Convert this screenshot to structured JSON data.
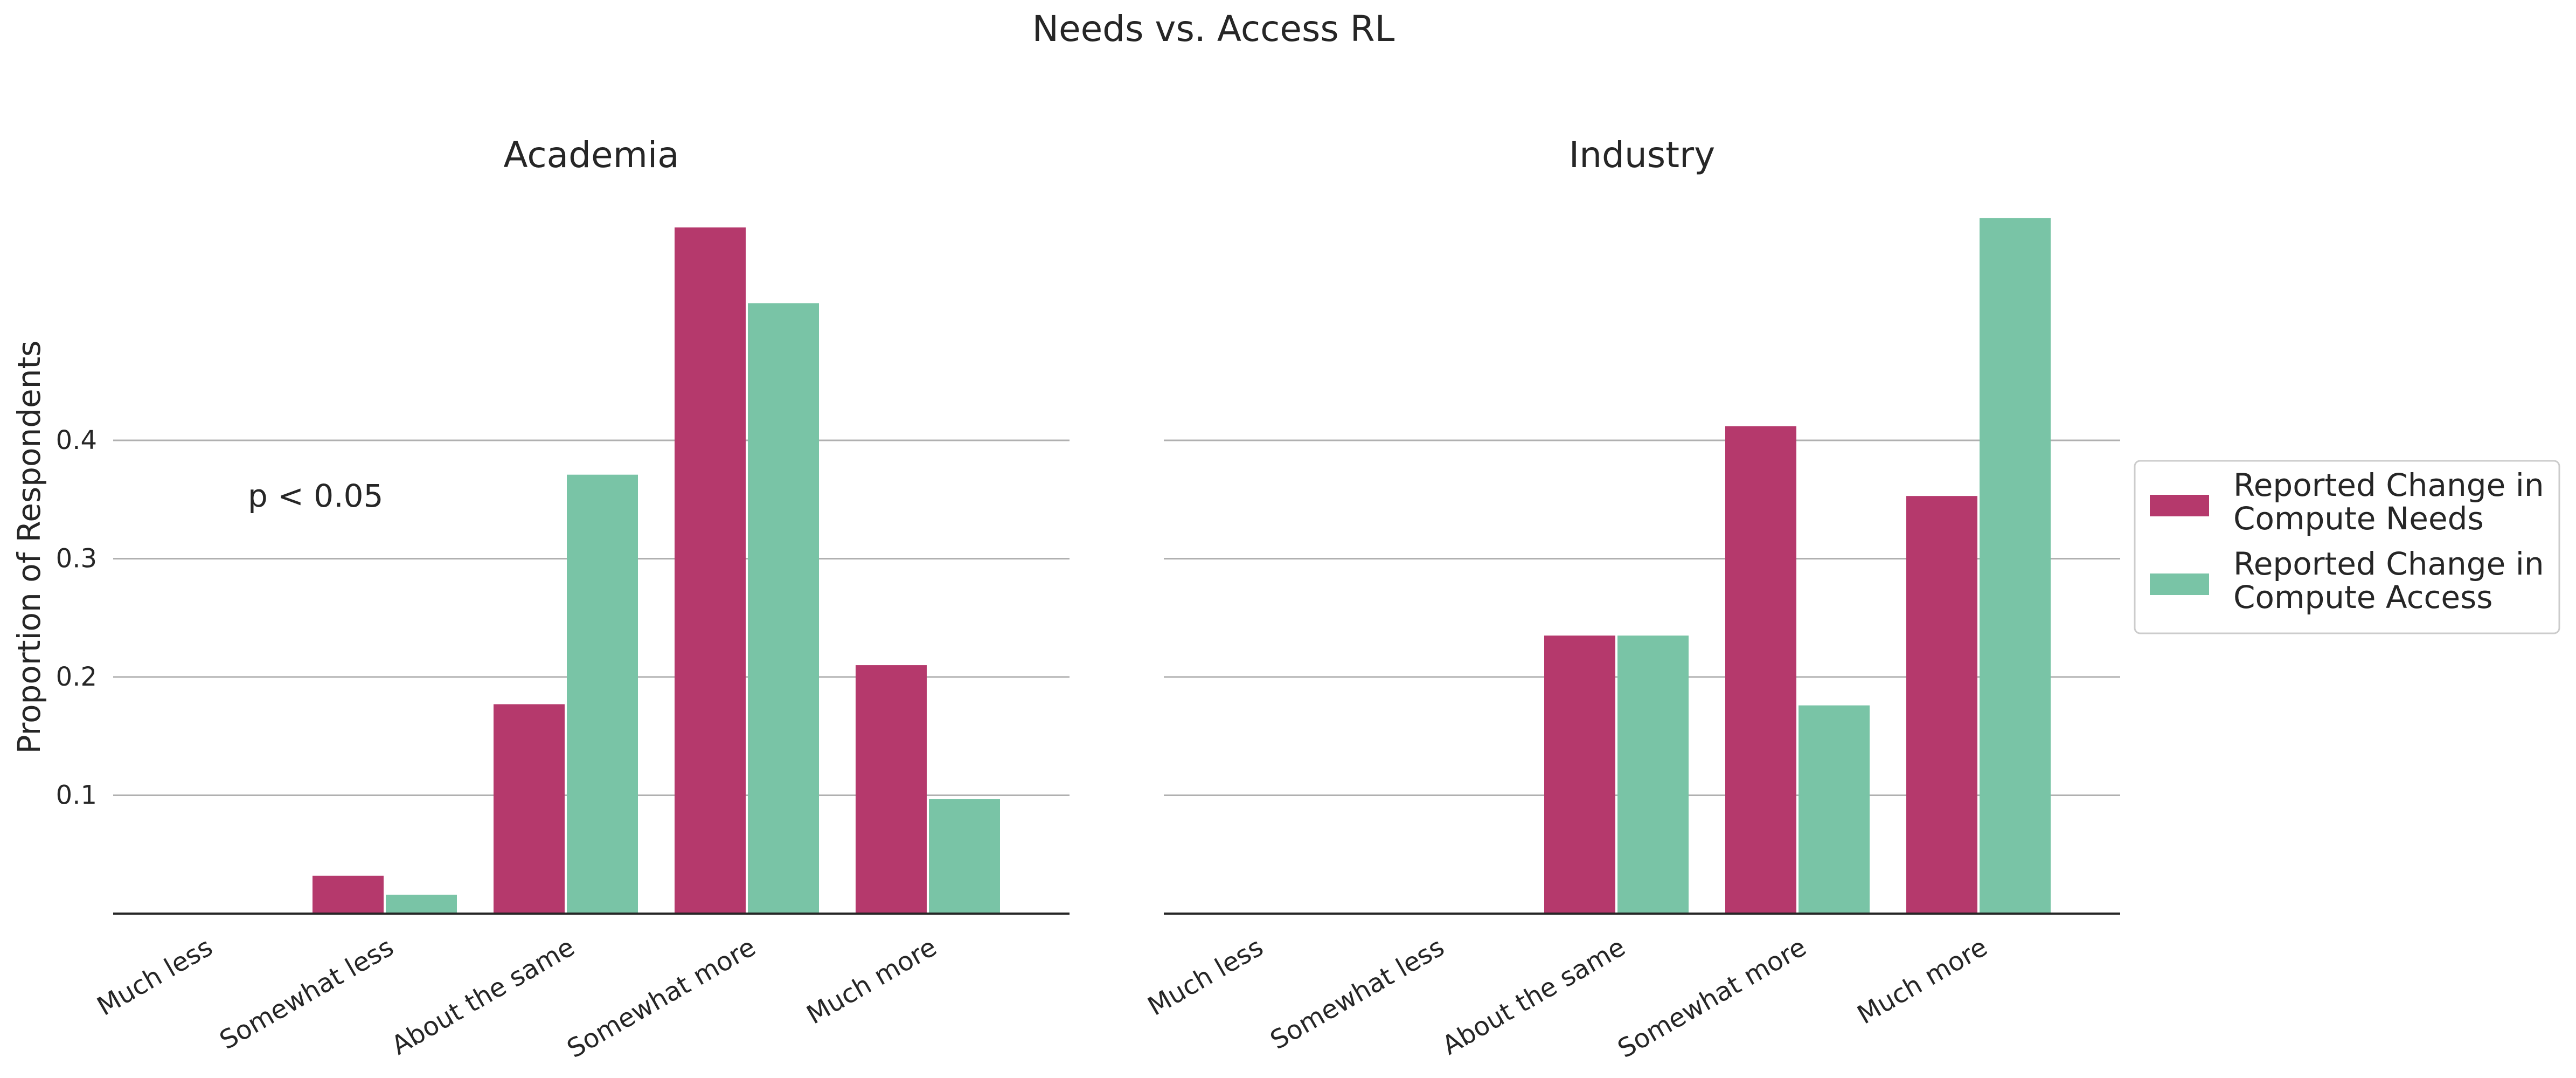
{
  "figure": {
    "title": "Needs vs. Access RL",
    "ylabel": "Proportion of Respondents",
    "yticks": [
      0.1,
      0.2,
      0.3,
      0.4
    ],
    "ylim": [
      0,
      0.59
    ],
    "annotation": "p < 0.05",
    "legend": {
      "placement": "right",
      "entries": [
        {
          "label_lines": [
            "Reported Change in",
            "Compute Needs"
          ],
          "color": "#b5396c"
        },
        {
          "label_lines": [
            "Reported Change in",
            "Compute Access"
          ],
          "color": "#79c4a6"
        }
      ]
    },
    "colors": {
      "needs": "#b5396c",
      "access": "#79c4a6"
    }
  },
  "chart_data": [
    {
      "type": "bar",
      "title": "Academia",
      "categories": [
        "Much less",
        "Somewhat less",
        "About the same",
        "Somewhat more",
        "Much more"
      ],
      "series": [
        {
          "name": "Reported Change in Compute Needs",
          "values": [
            0.0,
            0.032,
            0.177,
            0.58,
            0.21
          ]
        },
        {
          "name": "Reported Change in Compute Access",
          "values": [
            0.0,
            0.016,
            0.371,
            0.516,
            0.097
          ]
        }
      ],
      "ylabel": "Proportion of Respondents",
      "ylim": [
        0,
        0.59
      ],
      "annotation": "p < 0.05",
      "grid": true
    },
    {
      "type": "bar",
      "title": "Industry",
      "categories": [
        "Much less",
        "Somewhat less",
        "About the same",
        "Somewhat more",
        "Much more"
      ],
      "series": [
        {
          "name": "Reported Change in Compute Needs",
          "values": [
            0.0,
            0.0,
            0.235,
            0.412,
            0.353
          ]
        },
        {
          "name": "Reported Change in Compute Access",
          "values": [
            0.0,
            0.0,
            0.235,
            0.176,
            0.588
          ]
        }
      ],
      "ylim": [
        0,
        0.59
      ],
      "grid": true
    }
  ]
}
